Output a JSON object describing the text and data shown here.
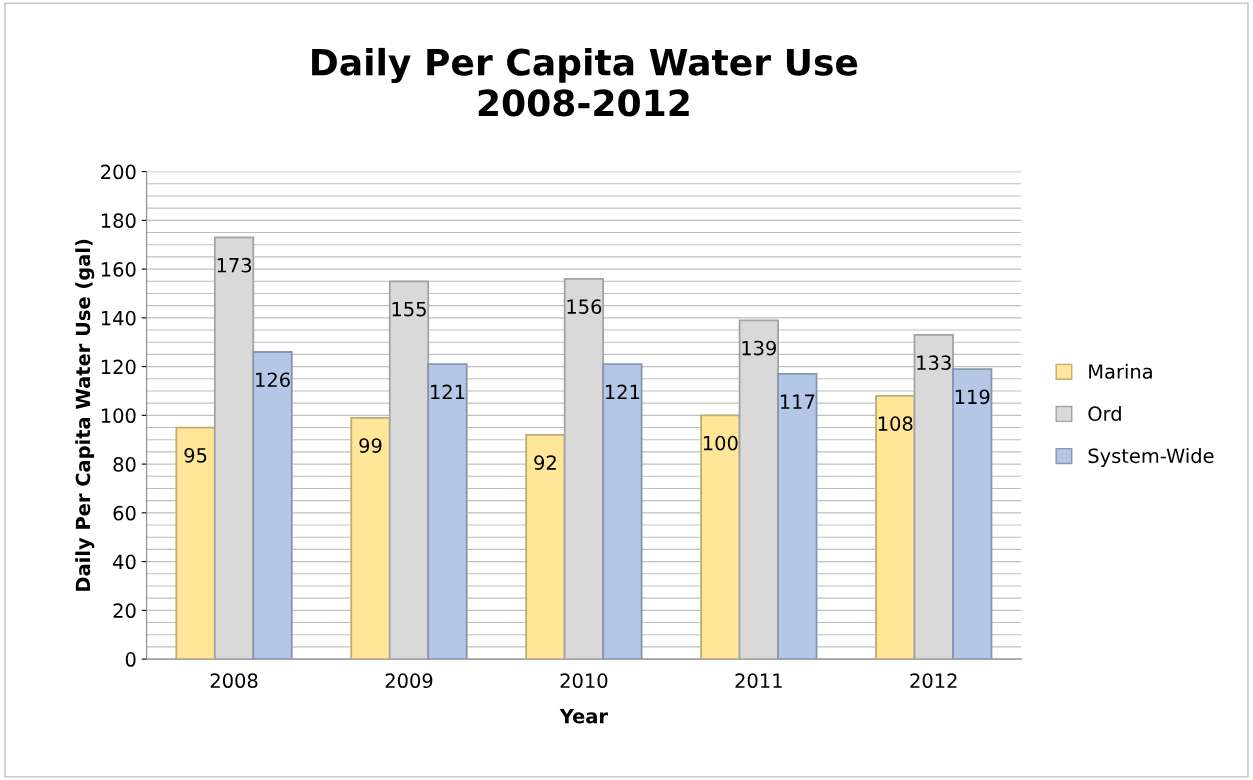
{
  "chart_data": {
    "type": "bar",
    "title": "Daily Per Capita Water Use\n2008-2012",
    "xlabel": "Year",
    "ylabel": "Daily Per Capita Water Use (gal)",
    "categories": [
      "2008",
      "2009",
      "2010",
      "2011",
      "2012"
    ],
    "series": [
      {
        "name": "Marina",
        "color": "#ffe699",
        "values": [
          95,
          99,
          92,
          100,
          108
        ]
      },
      {
        "name": "Ord",
        "color": "#d9d9d9",
        "values": [
          173,
          155,
          156,
          139,
          133
        ]
      },
      {
        "name": "System-Wide",
        "color": "#b4c7e7",
        "values": [
          126,
          121,
          121,
          117,
          119
        ]
      }
    ],
    "ylim": [
      0,
      200
    ],
    "yticks": [
      0,
      {
        "value": 5,
        "label": null
      },
      {
        "value": 10,
        "label": null
      },
      {
        "value": 15,
        "label": null
      },
      20,
      {
        "value": 25,
        "label": null
      },
      {
        "value": 30,
        "label": null
      },
      {
        "value": 35,
        "label": null
      },
      40,
      {
        "value": 45,
        "label": null
      },
      {
        "value": 50,
        "label": null
      },
      {
        "value": 55,
        "label": null
      },
      60,
      {
        "value": 65,
        "label": null
      },
      {
        "value": 70,
        "label": null
      },
      {
        "value": 75,
        "label": null
      },
      80,
      {
        "value": 85,
        "label": null
      },
      {
        "value": 90,
        "label": null
      },
      {
        "value": 95,
        "label": null
      },
      100,
      {
        "value": 105,
        "label": null
      },
      {
        "value": 110,
        "label": null
      },
      {
        "value": 115,
        "label": null
      },
      120,
      {
        "value": 125,
        "label": null
      },
      {
        "value": 130,
        "label": null
      },
      {
        "value": 135,
        "label": null
      },
      140,
      {
        "value": 145,
        "label": null
      },
      {
        "value": 150,
        "label": null
      },
      {
        "value": 155,
        "label": null
      },
      160,
      {
        "value": 165,
        "label": null
      },
      {
        "value": 170,
        "label": null
      },
      {
        "value": 175,
        "label": null
      },
      180,
      {
        "value": 185,
        "label": null
      },
      {
        "value": 190,
        "label": null
      },
      {
        "value": 195,
        "label": null
      },
      200
    ],
    "grid": true,
    "legend": "right",
    "data_labels": true
  }
}
